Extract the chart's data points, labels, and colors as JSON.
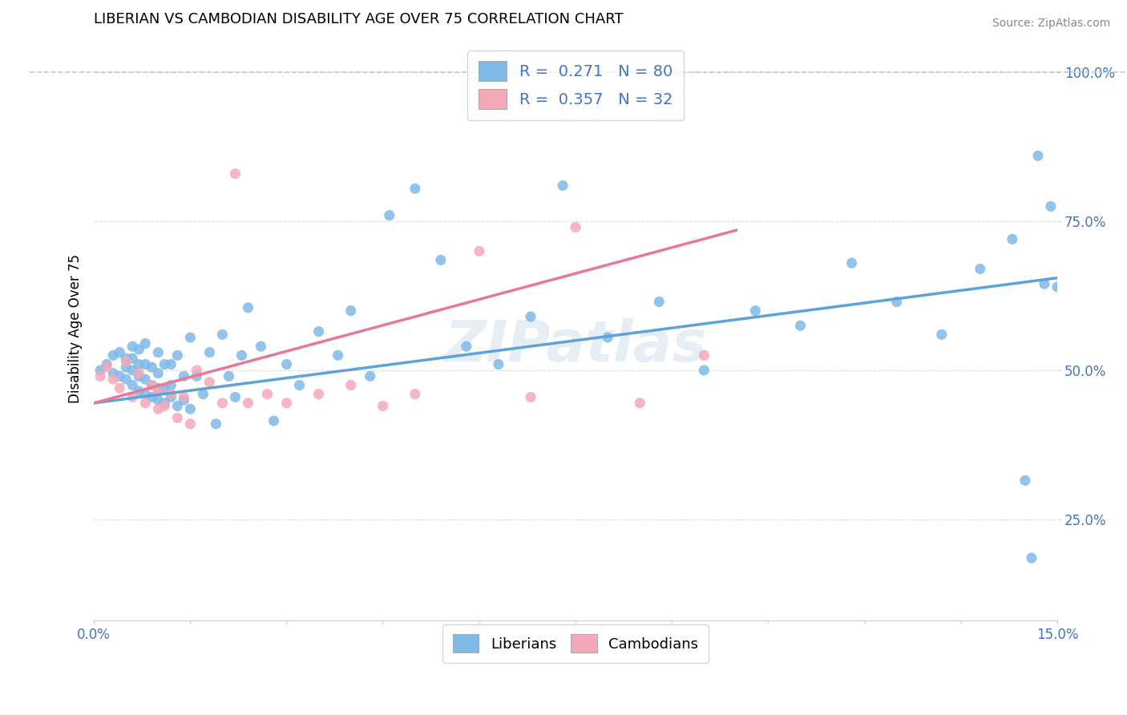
{
  "title": "LIBERIAN VS CAMBODIAN DISABILITY AGE OVER 75 CORRELATION CHART",
  "source_text": "Source: ZipAtlas.com",
  "ylabel": "Disability Age Over 75",
  "xlim": [
    0.0,
    0.15
  ],
  "ylim": [
    0.08,
    1.06
  ],
  "xtick_positions": [
    0.0,
    0.015,
    0.03,
    0.045,
    0.06,
    0.075,
    0.09,
    0.105,
    0.12,
    0.135,
    0.15
  ],
  "xticklabels": [
    "0.0%",
    "",
    "",
    "",
    "",
    "",
    "",
    "",
    "",
    "",
    "15.0%"
  ],
  "ytick_positions": [
    0.25,
    0.5,
    0.75,
    1.0
  ],
  "yticklabels": [
    "25.0%",
    "50.0%",
    "75.0%",
    "100.0%"
  ],
  "legend_R1": "0.271",
  "legend_N1": "80",
  "legend_R2": "0.357",
  "legend_N2": "32",
  "color_liberian": "#7EB9E8",
  "color_cambodian": "#F4A8B8",
  "color_liberian_line": "#5BA3D9",
  "color_cambodian_line": "#E87899",
  "color_dashed": "#C8C8C8",
  "watermark_text": "ZIPatlas",
  "lib_trend_x0": 0.0,
  "lib_trend_y0": 0.445,
  "lib_trend_x1": 0.15,
  "lib_trend_y1": 0.655,
  "cam_trend_x0": 0.0,
  "cam_trend_y0": 0.445,
  "cam_trend_x1": 0.1,
  "cam_trend_y1": 0.735,
  "liberian_x": [
    0.001,
    0.002,
    0.003,
    0.003,
    0.004,
    0.004,
    0.005,
    0.005,
    0.005,
    0.006,
    0.006,
    0.006,
    0.006,
    0.007,
    0.007,
    0.007,
    0.007,
    0.008,
    0.008,
    0.008,
    0.008,
    0.009,
    0.009,
    0.009,
    0.01,
    0.01,
    0.01,
    0.01,
    0.011,
    0.011,
    0.011,
    0.012,
    0.012,
    0.012,
    0.013,
    0.013,
    0.014,
    0.014,
    0.015,
    0.015,
    0.016,
    0.017,
    0.018,
    0.019,
    0.02,
    0.021,
    0.022,
    0.023,
    0.024,
    0.026,
    0.028,
    0.03,
    0.032,
    0.035,
    0.038,
    0.04,
    0.043,
    0.046,
    0.05,
    0.054,
    0.058,
    0.063,
    0.068,
    0.073,
    0.08,
    0.088,
    0.095,
    0.103,
    0.11,
    0.118,
    0.125,
    0.132,
    0.138,
    0.143,
    0.145,
    0.146,
    0.147,
    0.148,
    0.149,
    0.15
  ],
  "liberian_y": [
    0.5,
    0.51,
    0.495,
    0.525,
    0.49,
    0.53,
    0.485,
    0.505,
    0.52,
    0.475,
    0.5,
    0.52,
    0.54,
    0.465,
    0.49,
    0.51,
    0.535,
    0.46,
    0.485,
    0.51,
    0.545,
    0.455,
    0.475,
    0.505,
    0.45,
    0.47,
    0.495,
    0.53,
    0.445,
    0.468,
    0.51,
    0.455,
    0.475,
    0.51,
    0.44,
    0.525,
    0.45,
    0.49,
    0.435,
    0.555,
    0.49,
    0.46,
    0.53,
    0.41,
    0.56,
    0.49,
    0.455,
    0.525,
    0.605,
    0.54,
    0.415,
    0.51,
    0.475,
    0.565,
    0.525,
    0.6,
    0.49,
    0.76,
    0.805,
    0.685,
    0.54,
    0.51,
    0.59,
    0.81,
    0.555,
    0.615,
    0.5,
    0.6,
    0.575,
    0.68,
    0.615,
    0.56,
    0.67,
    0.72,
    0.315,
    0.185,
    0.86,
    0.645,
    0.775,
    0.64
  ],
  "cambodian_x": [
    0.001,
    0.002,
    0.003,
    0.004,
    0.005,
    0.006,
    0.007,
    0.008,
    0.009,
    0.01,
    0.01,
    0.011,
    0.012,
    0.013,
    0.014,
    0.015,
    0.016,
    0.018,
    0.02,
    0.022,
    0.024,
    0.027,
    0.03,
    0.035,
    0.04,
    0.045,
    0.05,
    0.06,
    0.068,
    0.075,
    0.085,
    0.095
  ],
  "cambodian_y": [
    0.49,
    0.505,
    0.485,
    0.47,
    0.515,
    0.455,
    0.495,
    0.445,
    0.475,
    0.435,
    0.465,
    0.44,
    0.46,
    0.42,
    0.455,
    0.41,
    0.5,
    0.48,
    0.445,
    0.83,
    0.445,
    0.46,
    0.445,
    0.46,
    0.475,
    0.44,
    0.46,
    0.7,
    0.455,
    0.74,
    0.445,
    0.525
  ]
}
